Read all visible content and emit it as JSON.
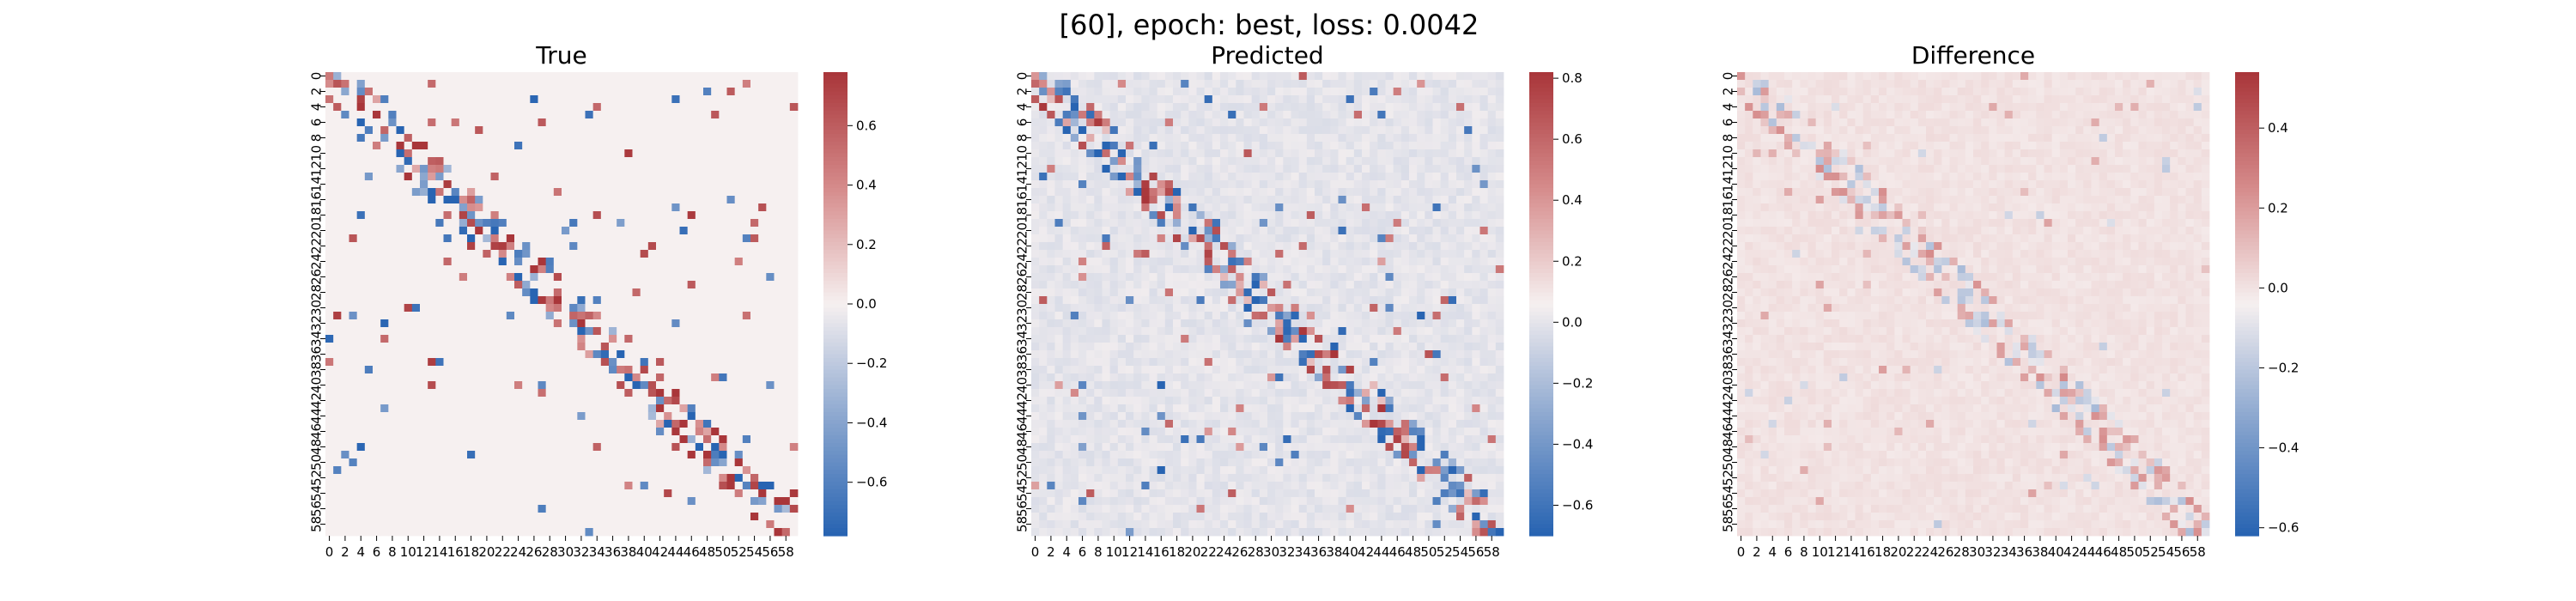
{
  "figure": {
    "suptitle": "[60], epoch: best, loss: 0.0042"
  },
  "chart_data": [
    {
      "type": "heatmap",
      "title": "True",
      "matrix_size": 60,
      "tick_step": 2,
      "diagonal_band": true,
      "colormap": "vlag",
      "colorbar": {
        "min": -0.78,
        "max": 0.78,
        "ticks": [
          -0.6,
          -0.4,
          -0.2,
          0.0,
          0.2,
          0.4,
          0.6
        ],
        "tick_labels": [
          "−0.6",
          "−0.4",
          "−0.2",
          "0.0",
          "0.2",
          "0.4",
          "0.6"
        ]
      },
      "sparse": true,
      "band_strength": 0.7,
      "off_band_density": 0.03,
      "background": 0.0,
      "seed": 11
    },
    {
      "type": "heatmap",
      "title": "Predicted",
      "matrix_size": 60,
      "tick_step": 2,
      "diagonal_band": true,
      "colormap": "vlag",
      "colorbar": {
        "min": -0.7,
        "max": 0.82,
        "ticks": [
          -0.6,
          -0.4,
          -0.2,
          0.0,
          0.2,
          0.4,
          0.6,
          0.8
        ],
        "tick_labels": [
          "−0.6",
          "−0.4",
          "−0.2",
          "0.0",
          "0.2",
          "0.4",
          "0.6",
          "0.8"
        ]
      },
      "sparse": true,
      "band_strength": 0.62,
      "off_band_density": 0.035,
      "background": 0.04,
      "seed": 11
    },
    {
      "type": "heatmap",
      "title": "Difference",
      "matrix_size": 60,
      "tick_step": 2,
      "diagonal_band": true,
      "colormap": "vlag",
      "colorbar": {
        "min": -0.62,
        "max": 0.54,
        "ticks": [
          -0.6,
          -0.4,
          -0.2,
          0.0,
          0.2,
          0.4
        ],
        "tick_labels": [
          "−0.6",
          "−0.4",
          "−0.2",
          "0.0",
          "0.2",
          "0.4"
        ]
      },
      "sparse": false,
      "band_strength": 0.18,
      "off_band_density": 0.02,
      "background": 0.02,
      "seed": 29
    }
  ]
}
